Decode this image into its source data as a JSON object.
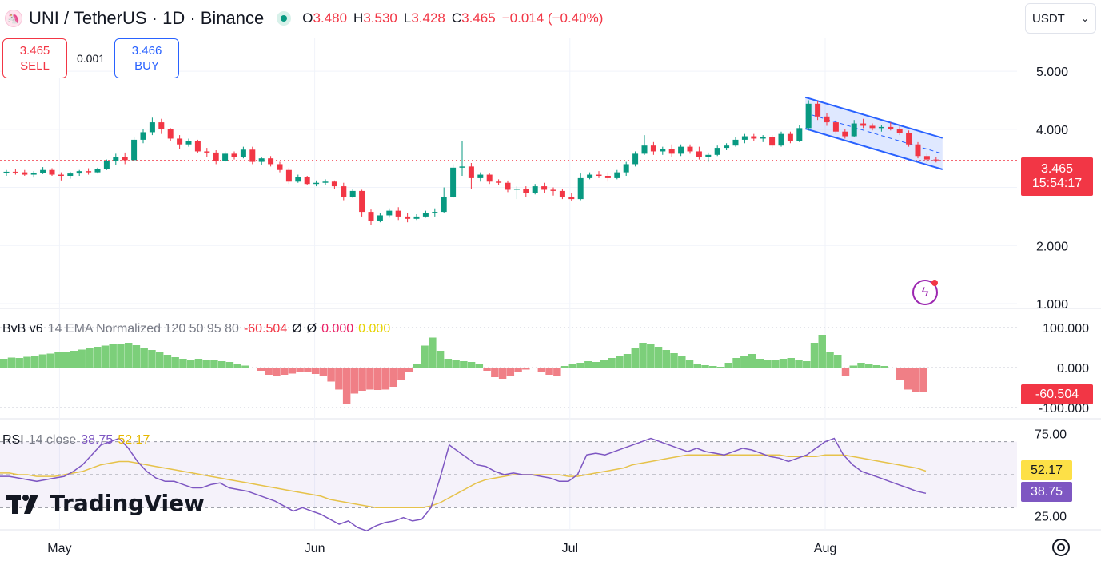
{
  "header": {
    "symbol_icon": "uniswap-icon",
    "title": "UNI / TetherUS · 1D · Binance",
    "ohlc": [
      {
        "k": "O",
        "v": "3.480"
      },
      {
        "k": "H",
        "v": "3.530"
      },
      {
        "k": "L",
        "v": "3.428"
      },
      {
        "k": "C",
        "v": "3.465"
      },
      {
        "k": "",
        "v": "−0.014 (−0.40%)"
      }
    ]
  },
  "trade": {
    "sell_price": "3.465",
    "sell_label": "SELL",
    "spread": "0.001",
    "buy_price": "3.466",
    "buy_label": "BUY"
  },
  "currency": {
    "label": "USDT",
    "icon": "chevron-down-icon"
  },
  "price_tag": {
    "price": "3.465",
    "countdown": "15:54:17"
  },
  "bvb": {
    "legend_name": "BvB v6",
    "legend_params": "14 EMA Normalized 120 50 95 80",
    "legend_value": "-60.504",
    "legend_null1": "Ø",
    "legend_null2": "Ø",
    "legend_v2": "0.000",
    "legend_v3": "0.000",
    "tag": "-60.504"
  },
  "rsi": {
    "legend_name": "RSI",
    "legend_params": "14 close",
    "legend_rsi": "38.75",
    "legend_ma": "52.17",
    "tag_ma": "52.17",
    "tag_rsi": "38.75"
  },
  "brand": {
    "name": "TradingView"
  },
  "colors": {
    "up": "#089981",
    "down": "#f23645",
    "hist_up": "#7ccf7a",
    "hist_down": "#f07f86",
    "rsi_line": "#7e57c2",
    "rsi_ma": "#e6c24a",
    "channel": "#2962ff"
  },
  "chart_data": [
    {
      "type": "candlestick",
      "title": "UNI / TetherUS · 1D · Binance",
      "x_ticks": [
        "May",
        "Jun",
        "Jul",
        "Aug"
      ],
      "y_ticks": [
        1.0,
        2.0,
        3.0,
        4.0,
        5.0
      ],
      "ylim": [
        1.0,
        5.4
      ],
      "candles_ohlc": [
        [
          3.25,
          3.3,
          3.2,
          3.27
        ],
        [
          3.27,
          3.32,
          3.22,
          3.26
        ],
        [
          3.26,
          3.3,
          3.2,
          3.22
        ],
        [
          3.22,
          3.28,
          3.17,
          3.25
        ],
        [
          3.25,
          3.35,
          3.23,
          3.3
        ],
        [
          3.3,
          3.33,
          3.2,
          3.22
        ],
        [
          3.22,
          3.26,
          3.12,
          3.2
        ],
        [
          3.2,
          3.27,
          3.15,
          3.24
        ],
        [
          3.24,
          3.3,
          3.2,
          3.28
        ],
        [
          3.28,
          3.33,
          3.22,
          3.26
        ],
        [
          3.26,
          3.34,
          3.24,
          3.32
        ],
        [
          3.32,
          3.48,
          3.3,
          3.45
        ],
        [
          3.45,
          3.58,
          3.38,
          3.52
        ],
        [
          3.52,
          3.6,
          3.4,
          3.47
        ],
        [
          3.47,
          3.86,
          3.45,
          3.82
        ],
        [
          3.82,
          4.0,
          3.76,
          3.95
        ],
        [
          3.95,
          4.2,
          3.9,
          4.12
        ],
        [
          4.12,
          4.18,
          3.92,
          4.0
        ],
        [
          4.0,
          4.02,
          3.8,
          3.84
        ],
        [
          3.84,
          3.9,
          3.66,
          3.74
        ],
        [
          3.74,
          3.84,
          3.7,
          3.8
        ],
        [
          3.8,
          3.82,
          3.6,
          3.62
        ],
        [
          3.62,
          3.68,
          3.52,
          3.6
        ],
        [
          3.6,
          3.64,
          3.4,
          3.46
        ],
        [
          3.46,
          3.62,
          3.44,
          3.58
        ],
        [
          3.58,
          3.62,
          3.48,
          3.52
        ],
        [
          3.52,
          3.7,
          3.5,
          3.65
        ],
        [
          3.65,
          3.7,
          3.4,
          3.44
        ],
        [
          3.44,
          3.52,
          3.38,
          3.5
        ],
        [
          3.5,
          3.54,
          3.36,
          3.4
        ],
        [
          3.4,
          3.44,
          3.26,
          3.3
        ],
        [
          3.3,
          3.34,
          3.06,
          3.1
        ],
        [
          3.1,
          3.22,
          3.08,
          3.18
        ],
        [
          3.18,
          3.2,
          3.04,
          3.06
        ],
        [
          3.06,
          3.12,
          3.02,
          3.08
        ],
        [
          3.08,
          3.14,
          3.04,
          3.1
        ],
        [
          3.1,
          3.12,
          2.98,
          3.02
        ],
        [
          3.02,
          3.08,
          2.78,
          2.84
        ],
        [
          2.84,
          2.98,
          2.82,
          2.94
        ],
        [
          2.94,
          2.96,
          2.5,
          2.58
        ],
        [
          2.58,
          2.62,
          2.36,
          2.42
        ],
        [
          2.42,
          2.56,
          2.4,
          2.52
        ],
        [
          2.52,
          2.64,
          2.48,
          2.6
        ],
        [
          2.6,
          2.66,
          2.44,
          2.5
        ],
        [
          2.5,
          2.56,
          2.4,
          2.46
        ],
        [
          2.46,
          2.54,
          2.44,
          2.5
        ],
        [
          2.5,
          2.6,
          2.48,
          2.56
        ],
        [
          2.56,
          2.64,
          2.5,
          2.58
        ],
        [
          2.58,
          3.0,
          2.56,
          2.84
        ],
        [
          2.84,
          3.4,
          2.82,
          3.34
        ],
        [
          3.34,
          3.8,
          3.2,
          3.36
        ],
        [
          3.36,
          3.42,
          2.98,
          3.16
        ],
        [
          3.16,
          3.26,
          3.1,
          3.22
        ],
        [
          3.22,
          3.24,
          3.06,
          3.1
        ],
        [
          3.1,
          3.14,
          3.04,
          3.08
        ],
        [
          3.08,
          3.12,
          2.92,
          2.96
        ],
        [
          2.96,
          3.02,
          2.8,
          2.98
        ],
        [
          2.98,
          3.02,
          2.84,
          2.9
        ],
        [
          2.9,
          3.06,
          2.88,
          3.02
        ],
        [
          3.02,
          3.08,
          2.9,
          2.96
        ],
        [
          2.96,
          3.0,
          2.86,
          2.94
        ],
        [
          2.94,
          2.98,
          2.8,
          2.84
        ],
        [
          2.84,
          2.9,
          2.76,
          2.8
        ],
        [
          2.8,
          3.24,
          2.78,
          3.16
        ],
        [
          3.16,
          3.26,
          3.14,
          3.22
        ],
        [
          3.22,
          3.28,
          3.16,
          3.2
        ],
        [
          3.2,
          3.26,
          3.1,
          3.16
        ],
        [
          3.16,
          3.3,
          3.14,
          3.26
        ],
        [
          3.26,
          3.44,
          3.2,
          3.4
        ],
        [
          3.4,
          3.62,
          3.36,
          3.58
        ],
        [
          3.58,
          3.9,
          3.56,
          3.72
        ],
        [
          3.72,
          3.78,
          3.56,
          3.62
        ],
        [
          3.62,
          3.7,
          3.56,
          3.66
        ],
        [
          3.66,
          3.74,
          3.52,
          3.58
        ],
        [
          3.58,
          3.74,
          3.54,
          3.7
        ],
        [
          3.7,
          3.74,
          3.58,
          3.62
        ],
        [
          3.62,
          3.7,
          3.48,
          3.52
        ],
        [
          3.52,
          3.6,
          3.44,
          3.56
        ],
        [
          3.56,
          3.72,
          3.54,
          3.68
        ],
        [
          3.68,
          3.76,
          3.64,
          3.72
        ],
        [
          3.72,
          3.86,
          3.7,
          3.82
        ],
        [
          3.82,
          3.92,
          3.76,
          3.88
        ],
        [
          3.88,
          3.92,
          3.8,
          3.84
        ],
        [
          3.84,
          3.9,
          3.78,
          3.86
        ],
        [
          3.86,
          3.9,
          3.68,
          3.72
        ],
        [
          3.72,
          3.96,
          3.7,
          3.92
        ],
        [
          3.92,
          3.96,
          3.76,
          3.8
        ],
        [
          3.8,
          4.08,
          3.78,
          4.02
        ],
        [
          4.02,
          4.5,
          3.98,
          4.44
        ],
        [
          4.44,
          4.48,
          4.16,
          4.22
        ],
        [
          4.22,
          4.28,
          4.06,
          4.12
        ],
        [
          4.12,
          4.16,
          3.92,
          3.96
        ],
        [
          3.96,
          4.0,
          3.84,
          3.88
        ],
        [
          3.88,
          4.16,
          3.86,
          4.1
        ],
        [
          4.1,
          4.18,
          4.02,
          4.06
        ],
        [
          4.06,
          4.1,
          3.98,
          4.02
        ],
        [
          4.02,
          4.08,
          3.96,
          4.04
        ],
        [
          4.04,
          4.12,
          3.98,
          4.0
        ],
        [
          4.0,
          4.06,
          3.9,
          3.94
        ],
        [
          3.94,
          3.98,
          3.7,
          3.74
        ],
        [
          3.74,
          3.78,
          3.5,
          3.54
        ],
        [
          3.54,
          3.58,
          3.42,
          3.48
        ],
        [
          3.48,
          3.53,
          3.43,
          3.465
        ]
      ],
      "channel_upper": [
        [
          4.55,
          "start"
        ],
        [
          3.85,
          "end"
        ]
      ],
      "channel_lower": [
        [
          4.01,
          "start"
        ],
        [
          3.31,
          "end"
        ]
      ],
      "last_price": 3.465
    },
    {
      "type": "bar",
      "title": "BvB v6 14 EMA Normalized 120 50 95 80",
      "y_ticks": [
        -100.0,
        0.0,
        100.0
      ],
      "ylim": [
        -120,
        120
      ],
      "values": [
        22,
        25,
        24,
        27,
        30,
        33,
        35,
        38,
        40,
        42,
        45,
        48,
        52,
        55,
        58,
        60,
        62,
        56,
        50,
        44,
        38,
        32,
        26,
        22,
        20,
        22,
        20,
        18,
        16,
        14,
        10,
        5,
        0,
        -8,
        -18,
        -20,
        -18,
        -15,
        -12,
        -10,
        -16,
        -22,
        -35,
        -55,
        -90,
        -65,
        -58,
        -55,
        -56,
        -55,
        -48,
        -30,
        -12,
        10,
        55,
        75,
        42,
        22,
        20,
        16,
        14,
        10,
        -8,
        -24,
        -28,
        -22,
        -12,
        -5,
        0,
        -10,
        -18,
        -20,
        4,
        8,
        12,
        16,
        14,
        18,
        24,
        28,
        34,
        48,
        62,
        60,
        52,
        44,
        36,
        30,
        20,
        10,
        6,
        4,
        2,
        12,
        24,
        30,
        34,
        22,
        18,
        20,
        22,
        24,
        18,
        16,
        62,
        82,
        40,
        32,
        -20,
        5,
        12,
        8,
        6,
        4,
        0,
        -30,
        -55,
        -60,
        -60
      ],
      "last_value": -60.504
    },
    {
      "type": "line",
      "title": "RSI 14 close",
      "series": [
        {
          "name": "RSI",
          "values": [
            49,
            49,
            48,
            47,
            46,
            47,
            48,
            49,
            52,
            56,
            62,
            68,
            70,
            72,
            66,
            58,
            52,
            48,
            46,
            46,
            44,
            42,
            42,
            44,
            45,
            42,
            41,
            40,
            38,
            36,
            34,
            31,
            28,
            30,
            28,
            26,
            23,
            20,
            22,
            18,
            16,
            19,
            21,
            22,
            24,
            22,
            23,
            30,
            48,
            68,
            64,
            60,
            56,
            55,
            52,
            50,
            51,
            50,
            50,
            49,
            48,
            46,
            46,
            50,
            62,
            63,
            62,
            64,
            66,
            68,
            70,
            72,
            70,
            68,
            66,
            64,
            66,
            64,
            63,
            62,
            64,
            66,
            65,
            63,
            61,
            60,
            58,
            60,
            62,
            66,
            70,
            72,
            62,
            56,
            52,
            50,
            48,
            46,
            44,
            42,
            40,
            38.75
          ]
        },
        {
          "name": "MA",
          "values": [
            51,
            51,
            50,
            50,
            49,
            49,
            49,
            50,
            51,
            52,
            54,
            56,
            57,
            58,
            58,
            57,
            56,
            55,
            54,
            53,
            52,
            51,
            50,
            49,
            48,
            47,
            46,
            45,
            44,
            43,
            42,
            41,
            40,
            39,
            38,
            37,
            35,
            34,
            33,
            32,
            31,
            30,
            30,
            30,
            30,
            30,
            30,
            31,
            33,
            36,
            39,
            42,
            45,
            47,
            48,
            49,
            50,
            50,
            50,
            50,
            50,
            50,
            49,
            49,
            50,
            51,
            52,
            53,
            54,
            56,
            57,
            58,
            59,
            60,
            61,
            62,
            62,
            62,
            62,
            62,
            62,
            62,
            62,
            62,
            62,
            62,
            61,
            61,
            61,
            61,
            62,
            62,
            62,
            61,
            60,
            59,
            58,
            57,
            56,
            55,
            54,
            52.17
          ]
        }
      ],
      "y_ticks": [
        25.0,
        75.0
      ],
      "ylim": [
        20,
        80
      ],
      "last_rsi": 38.75,
      "last_ma": 52.17
    }
  ]
}
